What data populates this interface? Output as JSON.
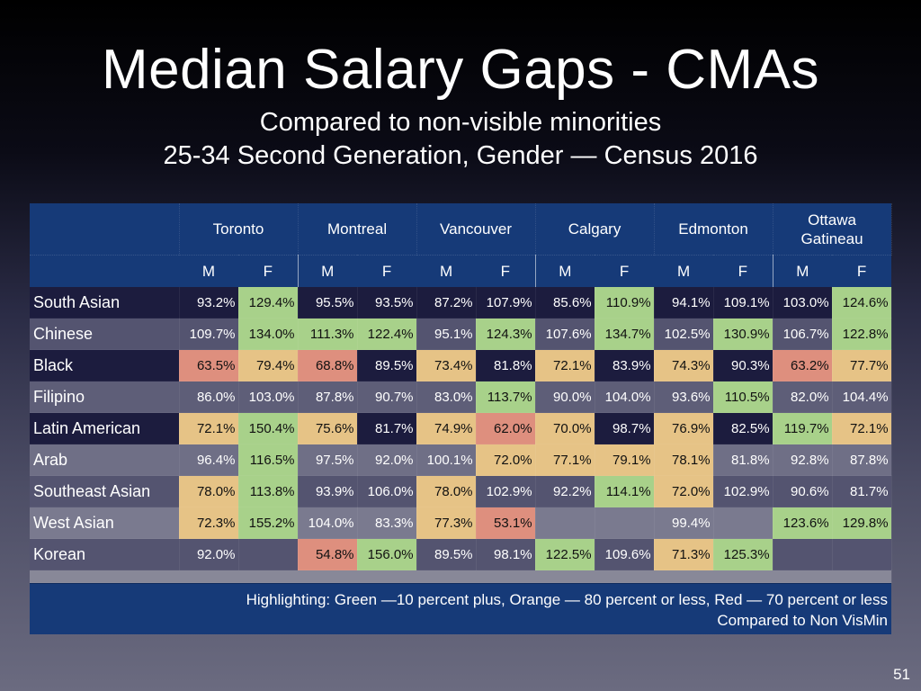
{
  "slide": {
    "title": "Median Salary Gaps - CMAs",
    "subtitle_line1": "Compared to non-visible minorities",
    "subtitle_line2": "25-34 Second Generation, Gender — Census 2016",
    "page_number": "51"
  },
  "chart_data": {
    "type": "table",
    "title": "Median Salary Gaps - CMAs",
    "subtitle": "Compared to non-visible minorities; 25-34 Second Generation, Gender — Census 2016",
    "cities": [
      "Toronto",
      "Montreal",
      "Vancouver",
      "Calgary",
      "Edmonton",
      "Ottawa Gatineau"
    ],
    "city_labels": [
      [
        "Toronto"
      ],
      [
        "Montreal"
      ],
      [
        "Vancouver"
      ],
      [
        "Calgary"
      ],
      [
        "Edmonton"
      ],
      [
        "Ottawa",
        "Gatineau"
      ]
    ],
    "genders": [
      "M",
      "F"
    ],
    "legend_colors": {
      "green": "#a8d18a",
      "orange": "#e6c386",
      "red": "#de8f7e"
    },
    "rows": [
      {
        "group": "South Asian",
        "shade": "dark",
        "values": [
          "93.2%",
          "129.4%",
          "95.5%",
          "93.5%",
          "87.2%",
          "107.9%",
          "85.6%",
          "110.9%",
          "94.1%",
          "109.1%",
          "103.0%",
          "124.6%"
        ],
        "highlight": [
          "",
          "green",
          "",
          "",
          "",
          "",
          "",
          "green",
          "",
          "",
          "",
          "green"
        ]
      },
      {
        "group": "Chinese",
        "shade": "mid",
        "values": [
          "109.7%",
          "134.0%",
          "111.3%",
          "122.4%",
          "95.1%",
          "124.3%",
          "107.6%",
          "134.7%",
          "102.5%",
          "130.9%",
          "106.7%",
          "122.8%"
        ],
        "highlight": [
          "",
          "green",
          "green",
          "green",
          "",
          "green",
          "",
          "green",
          "",
          "green",
          "",
          "green"
        ]
      },
      {
        "group": "Black",
        "shade": "dark",
        "values": [
          "63.5%",
          "79.4%",
          "68.8%",
          "89.5%",
          "73.4%",
          "81.8%",
          "72.1%",
          "83.9%",
          "74.3%",
          "90.3%",
          "63.2%",
          "77.7%"
        ],
        "highlight": [
          "red",
          "orange",
          "red",
          "",
          "orange",
          "",
          "orange",
          "",
          "orange",
          "",
          "red",
          "orange"
        ]
      },
      {
        "group": "Filipino",
        "shade": "mid2",
        "values": [
          "86.0%",
          "103.0%",
          "87.8%",
          "90.7%",
          "83.0%",
          "113.7%",
          "90.0%",
          "104.0%",
          "93.6%",
          "110.5%",
          "82.0%",
          "104.4%"
        ],
        "highlight": [
          "",
          "",
          "",
          "",
          "",
          "green",
          "",
          "",
          "",
          "green",
          "",
          ""
        ]
      },
      {
        "group": "Latin American",
        "shade": "dark",
        "values": [
          "72.1%",
          "150.4%",
          "75.6%",
          "81.7%",
          "74.9%",
          "62.0%",
          "70.0%",
          "98.7%",
          "76.9%",
          "82.5%",
          "119.7%",
          "72.1%"
        ],
        "highlight": [
          "orange",
          "green",
          "orange",
          "",
          "orange",
          "red",
          "orange",
          "",
          "orange",
          "",
          "green",
          "orange"
        ]
      },
      {
        "group": "Arab",
        "shade": "light",
        "values": [
          "96.4%",
          "116.5%",
          "97.5%",
          "92.0%",
          "100.1%",
          "72.0%",
          "77.1%",
          "79.1%",
          "78.1%",
          "81.8%",
          "92.8%",
          "87.8%"
        ],
        "highlight": [
          "",
          "green",
          "",
          "",
          "",
          "orange",
          "orange",
          "orange",
          "orange",
          "",
          "",
          ""
        ]
      },
      {
        "group": "Southeast Asian",
        "shade": "mid",
        "values": [
          "78.0%",
          "113.8%",
          "93.9%",
          "106.0%",
          "78.0%",
          "102.9%",
          "92.2%",
          "114.1%",
          "72.0%",
          "102.9%",
          "90.6%",
          "81.7%"
        ],
        "highlight": [
          "orange",
          "green",
          "",
          "",
          "orange",
          "",
          "",
          "green",
          "orange",
          "",
          "",
          ""
        ]
      },
      {
        "group": "West Asian",
        "shade": "lighter",
        "values": [
          "72.3%",
          "155.2%",
          "104.0%",
          "83.3%",
          "77.3%",
          "53.1%",
          "",
          "",
          "99.4%",
          "",
          "123.6%",
          "129.8%"
        ],
        "highlight": [
          "orange",
          "green",
          "",
          "",
          "orange",
          "red",
          "",
          "",
          "",
          "",
          "green",
          "green"
        ]
      },
      {
        "group": "Korean",
        "shade": "mid",
        "values": [
          "92.0%",
          "",
          "54.8%",
          "156.0%",
          "89.5%",
          "98.1%",
          "122.5%",
          "109.6%",
          "71.3%",
          "125.3%",
          "",
          ""
        ],
        "highlight": [
          "",
          "",
          "red",
          "green",
          "",
          "",
          "green",
          "",
          "orange",
          "green",
          "",
          ""
        ]
      }
    ],
    "notes": {
      "highlighting": "Highlighting: Green —10 percent plus, Orange — 80 percent or less, Red — 70 percent or less",
      "comparison": "Compared to Non VisMin"
    }
  }
}
